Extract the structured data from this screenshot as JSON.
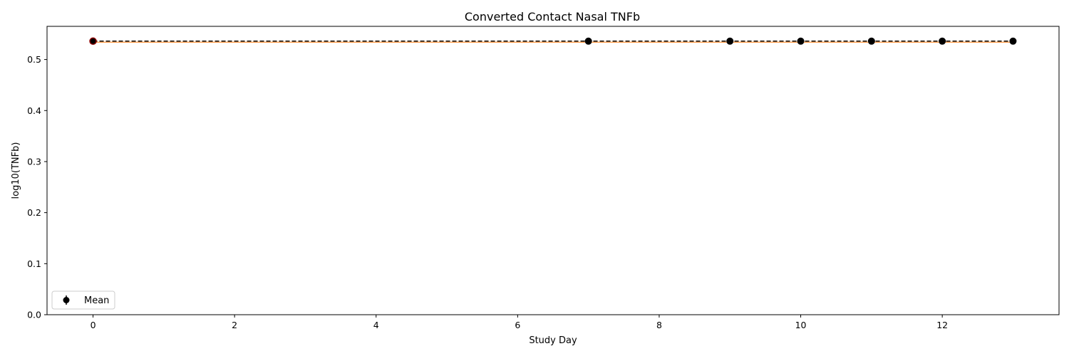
{
  "chart_data": {
    "type": "line",
    "title": "Converted Contact Nasal TNFb",
    "xlabel": "Study Day",
    "ylabel": "log10(TNFb)",
    "xlim": [
      -0.65,
      13.65
    ],
    "ylim": [
      0.0,
      0.565
    ],
    "xticks": [
      0,
      2,
      4,
      6,
      8,
      10,
      12
    ],
    "yticks": [
      0.0,
      0.1,
      0.2,
      0.3,
      0.4,
      0.5
    ],
    "grid": false,
    "legend": {
      "placement": "lower-left",
      "entries": [
        "Mean"
      ]
    },
    "series": [
      {
        "name": "Mean",
        "style": "dashed line with circle markers and error bars",
        "color": "#000000",
        "x": [
          0,
          7,
          9,
          10,
          11,
          12,
          13
        ],
        "y": [
          0.536,
          0.536,
          0.536,
          0.536,
          0.536,
          0.536,
          0.536
        ]
      }
    ],
    "colors": {
      "background": "#ffffff",
      "axes": "#000000",
      "series": "#000000",
      "underline": "#ff7f0e",
      "first_marker_edge": "#8b0000"
    }
  }
}
